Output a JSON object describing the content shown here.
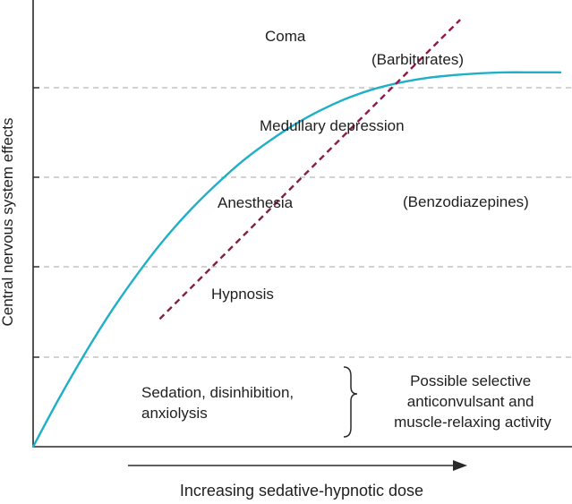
{
  "chart_data": {
    "type": "line",
    "xlabel": "Increasing sedative-hypnotic dose",
    "ylabel": "Central nervous system effects",
    "xlim": [
      0,
      1
    ],
    "ylim": [
      0,
      5
    ],
    "grid": "horizontal-dashed",
    "series": [
      {
        "name": "(Benzodiazepines)",
        "color": "#1fb0c8",
        "style": "solid",
        "x": [
          0,
          0.05,
          0.1,
          0.15,
          0.2,
          0.25,
          0.3,
          0.35,
          0.4,
          0.45,
          0.5,
          0.55,
          0.6,
          0.65,
          0.7,
          0.75,
          0.8,
          0.85,
          0.9,
          0.95,
          1.0
        ],
        "y": [
          0,
          0.55,
          1.06,
          1.53,
          1.95,
          2.33,
          2.66,
          2.95,
          3.21,
          3.43,
          3.62,
          3.78,
          3.91,
          4.01,
          4.08,
          4.13,
          4.16,
          4.18,
          4.19,
          4.19,
          4.19
        ]
      },
      {
        "name": "(Barbiturates)",
        "color": "#8a1a4a",
        "style": "dashed",
        "x": [
          0.24,
          0.81
        ],
        "y": [
          1.43,
          4.78
        ]
      }
    ],
    "levels": [
      "Sedation, disinhibition, anxiolysis",
      "Hypnosis",
      "Anesthesia",
      "Medullary depression",
      "Coma"
    ],
    "side_note": "Possible selective anticonvulsant and muscle-relaxing activity"
  }
}
